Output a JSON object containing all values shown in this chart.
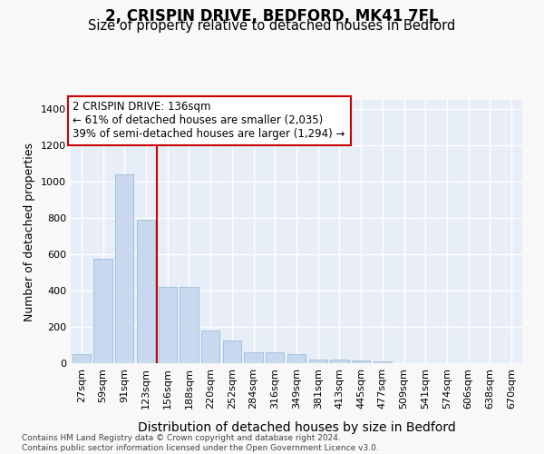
{
  "title_line1": "2, CRISPIN DRIVE, BEDFORD, MK41 7FL",
  "title_line2": "Size of property relative to detached houses in Bedford",
  "xlabel": "Distribution of detached houses by size in Bedford",
  "ylabel": "Number of detached properties",
  "categories": [
    "27sqm",
    "59sqm",
    "91sqm",
    "123sqm",
    "156sqm",
    "188sqm",
    "220sqm",
    "252sqm",
    "284sqm",
    "316sqm",
    "349sqm",
    "381sqm",
    "413sqm",
    "445sqm",
    "477sqm",
    "509sqm",
    "541sqm",
    "574sqm",
    "606sqm",
    "638sqm",
    "670sqm"
  ],
  "values": [
    50,
    575,
    1040,
    790,
    420,
    420,
    180,
    125,
    60,
    60,
    50,
    20,
    20,
    15,
    10,
    0,
    0,
    0,
    0,
    0,
    0
  ],
  "bar_color": "#c8d8ef",
  "bar_edge_color": "#9bbcd8",
  "vline_color": "#cc0000",
  "vline_x_index": 3,
  "annotation_line1": "2 CRISPIN DRIVE: 136sqm",
  "annotation_line2": "← 61% of detached houses are smaller (2,035)",
  "annotation_line3": "39% of semi-detached houses are larger (1,294) →",
  "annotation_box_facecolor": "#ffffff",
  "annotation_box_edgecolor": "#cc0000",
  "ylim": [
    0,
    1450
  ],
  "yticks": [
    0,
    200,
    400,
    600,
    800,
    1000,
    1200,
    1400
  ],
  "footer_text": "Contains HM Land Registry data © Crown copyright and database right 2024.\nContains public sector information licensed under the Open Government Licence v3.0.",
  "fig_facecolor": "#f8f8f8",
  "plot_facecolor": "#e8eef8",
  "grid_color": "#ffffff",
  "title1_fontsize": 12,
  "title2_fontsize": 10.5,
  "tick_fontsize": 8,
  "ylabel_fontsize": 9,
  "xlabel_fontsize": 10,
  "annotation_fontsize": 8.5,
  "footer_fontsize": 6.5
}
